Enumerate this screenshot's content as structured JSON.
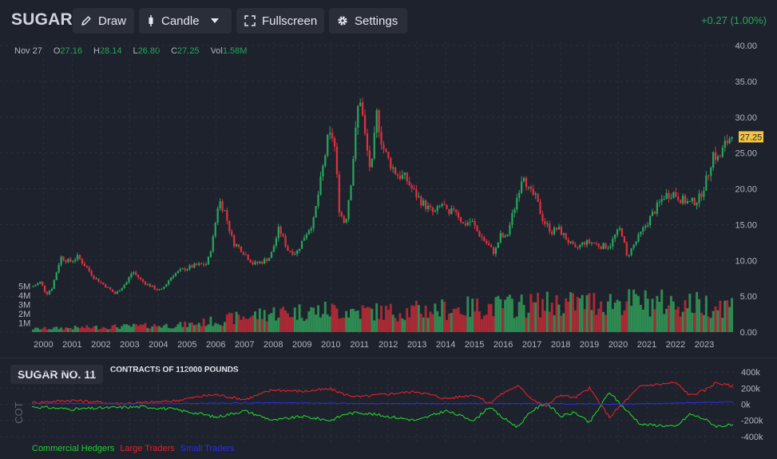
{
  "header": {
    "symbol": "SUGAR",
    "draw_label": "Draw",
    "candle_label": "Candle",
    "fullscreen_label": "Fullscreen",
    "settings_label": "Settings",
    "change": "+0.27 (1.00%)"
  },
  "ohlc": {
    "date": "Nov 27",
    "o_label": "O",
    "o": "27.16",
    "h_label": "H",
    "h": "28.14",
    "l_label": "L",
    "l": "26.80",
    "c_label": "C",
    "c": "27.25",
    "vol_label": "Vol",
    "vol": "1.58M"
  },
  "colors": {
    "background": "#1e222d",
    "up": "#26a65b",
    "down": "#e0303e",
    "volume_up": "#2e8b52",
    "volume_down": "#a92a35",
    "price_tag": "#f5c542",
    "commercial": "#1fd22b",
    "large": "#e3202b",
    "small": "#2431e8"
  },
  "cot": {
    "title": "SUGAR NO. 11",
    "subtitle": "CONTRACTS OF 112000 POUNDS",
    "axis_label": "COT",
    "legend": [
      "Commercial Hedgers",
      "Large Traders",
      "Small Traders"
    ]
  },
  "chart_data": [
    {
      "type": "candlestick",
      "last_price_label": "27.25",
      "price_axis": [
        40,
        35,
        30,
        25,
        20,
        15,
        10,
        5,
        0
      ],
      "price_axis_labels": [
        "40.00",
        "35.00",
        "30.00",
        "25.00",
        "20.00",
        "15.00",
        "10.00",
        "5.00",
        "0.00"
      ],
      "ylim": [
        0,
        40
      ],
      "volume_axis_labels": [
        "5M",
        "4M",
        "3M",
        "2M",
        "1M"
      ],
      "volume_axis_values": [
        5,
        4,
        3,
        2,
        1
      ],
      "volume_ylim": [
        0,
        5.9
      ],
      "x_ticks": [
        "2000",
        "2001",
        "2002",
        "2003",
        "2004",
        "2005",
        "2006",
        "2007",
        "2008",
        "2009",
        "2010",
        "2011",
        "2012",
        "2013",
        "2014",
        "2015",
        "2016",
        "2017",
        "2018",
        "2019",
        "2020",
        "2021",
        "2022",
        "2023"
      ],
      "xlim": [
        1999.6,
        2024.0
      ],
      "price_keypoints": [
        [
          1999.6,
          6.3
        ],
        [
          1999.9,
          7.0
        ],
        [
          2000.1,
          5.3
        ],
        [
          2000.3,
          6.2
        ],
        [
          2000.6,
          10.5
        ],
        [
          2000.9,
          9.8
        ],
        [
          2001.2,
          10.5
        ],
        [
          2001.8,
          7.5
        ],
        [
          2002.2,
          6.3
        ],
        [
          2002.5,
          5.3
        ],
        [
          2002.9,
          7.0
        ],
        [
          2003.1,
          8.5
        ],
        [
          2003.4,
          7.2
        ],
        [
          2003.9,
          6.0
        ],
        [
          2004.1,
          5.8
        ],
        [
          2004.5,
          8.0
        ],
        [
          2004.9,
          8.8
        ],
        [
          2005.3,
          9.3
        ],
        [
          2005.7,
          9.5
        ],
        [
          2005.9,
          13.0
        ],
        [
          2006.1,
          18.5
        ],
        [
          2006.3,
          17.0
        ],
        [
          2006.6,
          12.5
        ],
        [
          2006.9,
          11.5
        ],
        [
          2007.3,
          9.5
        ],
        [
          2007.6,
          9.8
        ],
        [
          2007.9,
          10.5
        ],
        [
          2008.2,
          14.5
        ],
        [
          2008.5,
          11.5
        ],
        [
          2008.8,
          11.0
        ],
        [
          2009.1,
          13.5
        ],
        [
          2009.4,
          15.5
        ],
        [
          2009.6,
          20.0
        ],
        [
          2009.9,
          27.0
        ],
        [
          2010.1,
          27.5
        ],
        [
          2010.3,
          17.0
        ],
        [
          2010.5,
          15.0
        ],
        [
          2010.7,
          21.0
        ],
        [
          2011.0,
          33.5
        ],
        [
          2011.2,
          27.0
        ],
        [
          2011.4,
          22.0
        ],
        [
          2011.6,
          30.5
        ],
        [
          2011.8,
          26.0
        ],
        [
          2012.0,
          24.0
        ],
        [
          2012.3,
          22.0
        ],
        [
          2012.6,
          21.5
        ],
        [
          2012.9,
          19.5
        ],
        [
          2013.2,
          18.0
        ],
        [
          2013.6,
          16.5
        ],
        [
          2013.9,
          18.0
        ],
        [
          2014.1,
          16.0
        ],
        [
          2014.3,
          17.5
        ],
        [
          2014.6,
          15.0
        ],
        [
          2014.9,
          15.5
        ],
        [
          2015.1,
          14.0
        ],
        [
          2015.4,
          12.5
        ],
        [
          2015.7,
          11.0
        ],
        [
          2015.9,
          13.5
        ],
        [
          2016.1,
          13.0
        ],
        [
          2016.4,
          17.5
        ],
        [
          2016.7,
          22.5
        ],
        [
          2016.9,
          19.5
        ],
        [
          2017.1,
          19.0
        ],
        [
          2017.4,
          15.5
        ],
        [
          2017.7,
          14.0
        ],
        [
          2017.9,
          14.5
        ],
        [
          2018.2,
          13.0
        ],
        [
          2018.5,
          11.5
        ],
        [
          2018.8,
          12.5
        ],
        [
          2019.1,
          12.5
        ],
        [
          2019.4,
          12.0
        ],
        [
          2019.7,
          12.0
        ],
        [
          2019.9,
          13.5
        ],
        [
          2020.1,
          14.5
        ],
        [
          2020.3,
          10.5
        ],
        [
          2020.6,
          12.5
        ],
        [
          2020.9,
          14.5
        ],
        [
          2021.2,
          16.5
        ],
        [
          2021.6,
          19.0
        ],
        [
          2021.9,
          19.5
        ],
        [
          2022.2,
          18.5
        ],
        [
          2022.5,
          18.0
        ],
        [
          2022.8,
          18.5
        ],
        [
          2023.1,
          21.5
        ],
        [
          2023.3,
          25.0
        ],
        [
          2023.5,
          24.0
        ],
        [
          2023.7,
          26.0
        ],
        [
          2023.9,
          27.25
        ]
      ],
      "volume_keypoints": [
        [
          1999.6,
          0.4
        ],
        [
          2005.0,
          0.9
        ],
        [
          2008.0,
          2.4
        ],
        [
          2010.0,
          2.7
        ],
        [
          2012.0,
          2.5
        ],
        [
          2017.0,
          3.4
        ],
        [
          2020.0,
          3.8
        ],
        [
          2023.9,
          3.3
        ]
      ]
    },
    {
      "type": "line",
      "title": "SUGAR NO. 11",
      "subtitle": "CONTRACTS OF 112000 POUNDS",
      "ylabel": "COT",
      "ylim": [
        -450000,
        430000
      ],
      "y_ticks": [
        400000,
        200000,
        0,
        -200000,
        -400000
      ],
      "y_tick_labels": [
        "400k",
        "200k",
        "0k",
        "-200k",
        "-400k"
      ],
      "xlim": [
        1999.6,
        2024.0
      ],
      "series": [
        {
          "name": "Commercial Hedgers",
          "points": [
            [
              1999.6,
              -30000
            ],
            [
              2001.0,
              -60000
            ],
            [
              2002.5,
              -40000
            ],
            [
              2003.5,
              -30000
            ],
            [
              2004.5,
              -60000
            ],
            [
              2005.5,
              -120000
            ],
            [
              2006.0,
              -160000
            ],
            [
              2007.0,
              -80000
            ],
            [
              2008.0,
              -200000
            ],
            [
              2009.0,
              -150000
            ],
            [
              2010.0,
              -200000
            ],
            [
              2010.5,
              -120000
            ],
            [
              2011.0,
              -100000
            ],
            [
              2012.0,
              -150000
            ],
            [
              2013.0,
              -200000
            ],
            [
              2014.0,
              -80000
            ],
            [
              2015.0,
              -200000
            ],
            [
              2015.5,
              -30000
            ],
            [
              2016.0,
              -170000
            ],
            [
              2016.5,
              -280000
            ],
            [
              2017.0,
              -80000
            ],
            [
              2017.5,
              20000
            ],
            [
              2018.0,
              -150000
            ],
            [
              2018.5,
              -100000
            ],
            [
              2019.0,
              -230000
            ],
            [
              2019.7,
              150000
            ],
            [
              2020.3,
              -80000
            ],
            [
              2020.8,
              -250000
            ],
            [
              2021.5,
              -260000
            ],
            [
              2022.0,
              -280000
            ],
            [
              2022.5,
              -120000
            ],
            [
              2023.0,
              -180000
            ],
            [
              2023.4,
              -270000
            ],
            [
              2023.9,
              -260000
            ]
          ]
        },
        {
          "name": "Large Traders",
          "points": [
            [
              1999.6,
              20000
            ],
            [
              2001.0,
              50000
            ],
            [
              2002.5,
              10000
            ],
            [
              2003.5,
              20000
            ],
            [
              2004.5,
              40000
            ],
            [
              2005.5,
              100000
            ],
            [
              2006.0,
              120000
            ],
            [
              2007.0,
              60000
            ],
            [
              2008.0,
              180000
            ],
            [
              2009.0,
              160000
            ],
            [
              2010.0,
              190000
            ],
            [
              2010.5,
              120000
            ],
            [
              2011.0,
              90000
            ],
            [
              2012.0,
              130000
            ],
            [
              2013.0,
              160000
            ],
            [
              2014.0,
              70000
            ],
            [
              2015.0,
              120000
            ],
            [
              2015.5,
              10000
            ],
            [
              2016.0,
              140000
            ],
            [
              2016.5,
              230000
            ],
            [
              2017.0,
              70000
            ],
            [
              2017.5,
              -20000
            ],
            [
              2018.0,
              120000
            ],
            [
              2018.5,
              80000
            ],
            [
              2019.0,
              200000
            ],
            [
              2019.7,
              -160000
            ],
            [
              2020.3,
              60000
            ],
            [
              2020.8,
              230000
            ],
            [
              2021.5,
              250000
            ],
            [
              2022.0,
              270000
            ],
            [
              2022.5,
              110000
            ],
            [
              2023.0,
              170000
            ],
            [
              2023.4,
              270000
            ],
            [
              2023.9,
              230000
            ]
          ]
        },
        {
          "name": "Small Traders",
          "points": [
            [
              1999.6,
              10000
            ],
            [
              2005.0,
              10000
            ],
            [
              2008.0,
              20000
            ],
            [
              2011.0,
              10000
            ],
            [
              2014.0,
              10000
            ],
            [
              2017.0,
              10000
            ],
            [
              2020.0,
              0
            ],
            [
              2023.9,
              30000
            ]
          ]
        }
      ]
    }
  ]
}
